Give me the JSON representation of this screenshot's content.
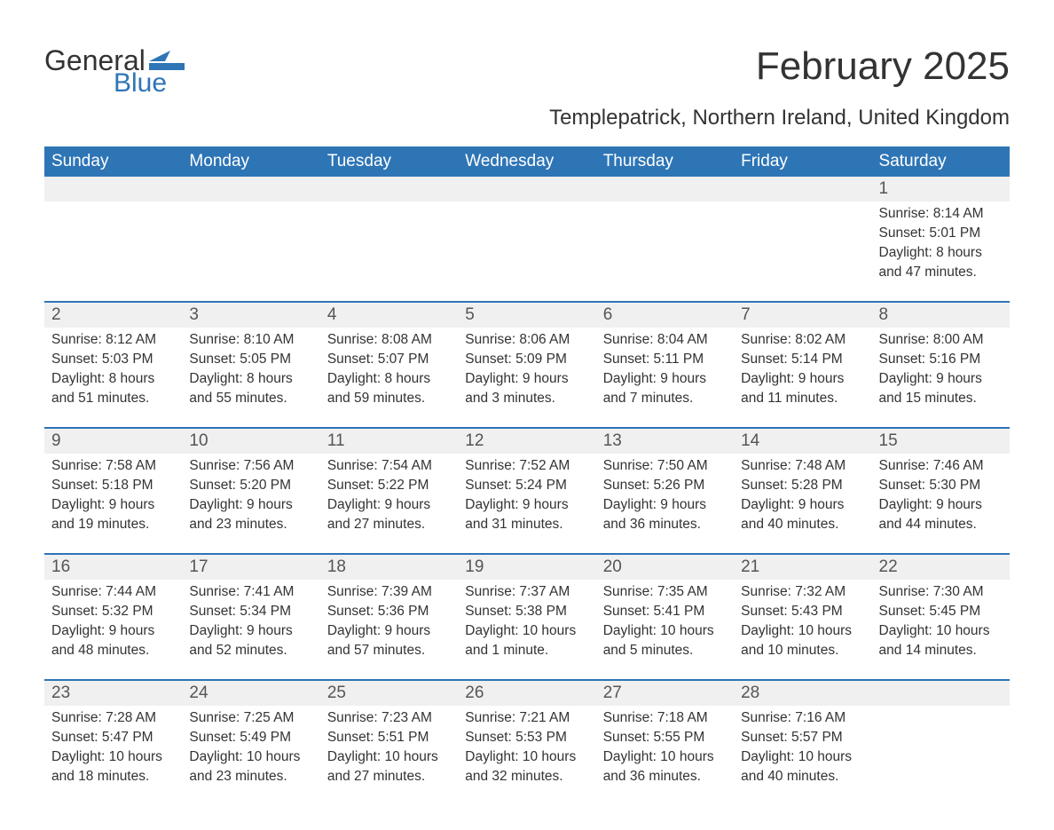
{
  "logo": {
    "word1": "General",
    "word2": "Blue",
    "icon_color": "#2e75b6"
  },
  "title": "February 2025",
  "subtitle": "Templepatrick, Northern Ireland, United Kingdom",
  "colors": {
    "header_bg": "#2e75b6",
    "header_text": "#ffffff",
    "daynum_bg": "#f0f0f0",
    "accent_border": "#2e75b6",
    "body_text": "#333333",
    "background": "#ffffff"
  },
  "font_sizes": {
    "title": 44,
    "subtitle": 24,
    "header": 19,
    "daynum": 19,
    "detail": 15.5
  },
  "day_headers": [
    "Sunday",
    "Monday",
    "Tuesday",
    "Wednesday",
    "Thursday",
    "Friday",
    "Saturday"
  ],
  "weeks": [
    {
      "days": [
        {
          "num": "",
          "sunrise": "",
          "sunset": "",
          "daylight1": "",
          "daylight2": ""
        },
        {
          "num": "",
          "sunrise": "",
          "sunset": "",
          "daylight1": "",
          "daylight2": ""
        },
        {
          "num": "",
          "sunrise": "",
          "sunset": "",
          "daylight1": "",
          "daylight2": ""
        },
        {
          "num": "",
          "sunrise": "",
          "sunset": "",
          "daylight1": "",
          "daylight2": ""
        },
        {
          "num": "",
          "sunrise": "",
          "sunset": "",
          "daylight1": "",
          "daylight2": ""
        },
        {
          "num": "",
          "sunrise": "",
          "sunset": "",
          "daylight1": "",
          "daylight2": ""
        },
        {
          "num": "1",
          "sunrise": "Sunrise: 8:14 AM",
          "sunset": "Sunset: 5:01 PM",
          "daylight1": "Daylight: 8 hours",
          "daylight2": "and 47 minutes."
        }
      ]
    },
    {
      "days": [
        {
          "num": "2",
          "sunrise": "Sunrise: 8:12 AM",
          "sunset": "Sunset: 5:03 PM",
          "daylight1": "Daylight: 8 hours",
          "daylight2": "and 51 minutes."
        },
        {
          "num": "3",
          "sunrise": "Sunrise: 8:10 AM",
          "sunset": "Sunset: 5:05 PM",
          "daylight1": "Daylight: 8 hours",
          "daylight2": "and 55 minutes."
        },
        {
          "num": "4",
          "sunrise": "Sunrise: 8:08 AM",
          "sunset": "Sunset: 5:07 PM",
          "daylight1": "Daylight: 8 hours",
          "daylight2": "and 59 minutes."
        },
        {
          "num": "5",
          "sunrise": "Sunrise: 8:06 AM",
          "sunset": "Sunset: 5:09 PM",
          "daylight1": "Daylight: 9 hours",
          "daylight2": "and 3 minutes."
        },
        {
          "num": "6",
          "sunrise": "Sunrise: 8:04 AM",
          "sunset": "Sunset: 5:11 PM",
          "daylight1": "Daylight: 9 hours",
          "daylight2": "and 7 minutes."
        },
        {
          "num": "7",
          "sunrise": "Sunrise: 8:02 AM",
          "sunset": "Sunset: 5:14 PM",
          "daylight1": "Daylight: 9 hours",
          "daylight2": "and 11 minutes."
        },
        {
          "num": "8",
          "sunrise": "Sunrise: 8:00 AM",
          "sunset": "Sunset: 5:16 PM",
          "daylight1": "Daylight: 9 hours",
          "daylight2": "and 15 minutes."
        }
      ]
    },
    {
      "days": [
        {
          "num": "9",
          "sunrise": "Sunrise: 7:58 AM",
          "sunset": "Sunset: 5:18 PM",
          "daylight1": "Daylight: 9 hours",
          "daylight2": "and 19 minutes."
        },
        {
          "num": "10",
          "sunrise": "Sunrise: 7:56 AM",
          "sunset": "Sunset: 5:20 PM",
          "daylight1": "Daylight: 9 hours",
          "daylight2": "and 23 minutes."
        },
        {
          "num": "11",
          "sunrise": "Sunrise: 7:54 AM",
          "sunset": "Sunset: 5:22 PM",
          "daylight1": "Daylight: 9 hours",
          "daylight2": "and 27 minutes."
        },
        {
          "num": "12",
          "sunrise": "Sunrise: 7:52 AM",
          "sunset": "Sunset: 5:24 PM",
          "daylight1": "Daylight: 9 hours",
          "daylight2": "and 31 minutes."
        },
        {
          "num": "13",
          "sunrise": "Sunrise: 7:50 AM",
          "sunset": "Sunset: 5:26 PM",
          "daylight1": "Daylight: 9 hours",
          "daylight2": "and 36 minutes."
        },
        {
          "num": "14",
          "sunrise": "Sunrise: 7:48 AM",
          "sunset": "Sunset: 5:28 PM",
          "daylight1": "Daylight: 9 hours",
          "daylight2": "and 40 minutes."
        },
        {
          "num": "15",
          "sunrise": "Sunrise: 7:46 AM",
          "sunset": "Sunset: 5:30 PM",
          "daylight1": "Daylight: 9 hours",
          "daylight2": "and 44 minutes."
        }
      ]
    },
    {
      "days": [
        {
          "num": "16",
          "sunrise": "Sunrise: 7:44 AM",
          "sunset": "Sunset: 5:32 PM",
          "daylight1": "Daylight: 9 hours",
          "daylight2": "and 48 minutes."
        },
        {
          "num": "17",
          "sunrise": "Sunrise: 7:41 AM",
          "sunset": "Sunset: 5:34 PM",
          "daylight1": "Daylight: 9 hours",
          "daylight2": "and 52 minutes."
        },
        {
          "num": "18",
          "sunrise": "Sunrise: 7:39 AM",
          "sunset": "Sunset: 5:36 PM",
          "daylight1": "Daylight: 9 hours",
          "daylight2": "and 57 minutes."
        },
        {
          "num": "19",
          "sunrise": "Sunrise: 7:37 AM",
          "sunset": "Sunset: 5:38 PM",
          "daylight1": "Daylight: 10 hours",
          "daylight2": "and 1 minute."
        },
        {
          "num": "20",
          "sunrise": "Sunrise: 7:35 AM",
          "sunset": "Sunset: 5:41 PM",
          "daylight1": "Daylight: 10 hours",
          "daylight2": "and 5 minutes."
        },
        {
          "num": "21",
          "sunrise": "Sunrise: 7:32 AM",
          "sunset": "Sunset: 5:43 PM",
          "daylight1": "Daylight: 10 hours",
          "daylight2": "and 10 minutes."
        },
        {
          "num": "22",
          "sunrise": "Sunrise: 7:30 AM",
          "sunset": "Sunset: 5:45 PM",
          "daylight1": "Daylight: 10 hours",
          "daylight2": "and 14 minutes."
        }
      ]
    },
    {
      "days": [
        {
          "num": "23",
          "sunrise": "Sunrise: 7:28 AM",
          "sunset": "Sunset: 5:47 PM",
          "daylight1": "Daylight: 10 hours",
          "daylight2": "and 18 minutes."
        },
        {
          "num": "24",
          "sunrise": "Sunrise: 7:25 AM",
          "sunset": "Sunset: 5:49 PM",
          "daylight1": "Daylight: 10 hours",
          "daylight2": "and 23 minutes."
        },
        {
          "num": "25",
          "sunrise": "Sunrise: 7:23 AM",
          "sunset": "Sunset: 5:51 PM",
          "daylight1": "Daylight: 10 hours",
          "daylight2": "and 27 minutes."
        },
        {
          "num": "26",
          "sunrise": "Sunrise: 7:21 AM",
          "sunset": "Sunset: 5:53 PM",
          "daylight1": "Daylight: 10 hours",
          "daylight2": "and 32 minutes."
        },
        {
          "num": "27",
          "sunrise": "Sunrise: 7:18 AM",
          "sunset": "Sunset: 5:55 PM",
          "daylight1": "Daylight: 10 hours",
          "daylight2": "and 36 minutes."
        },
        {
          "num": "28",
          "sunrise": "Sunrise: 7:16 AM",
          "sunset": "Sunset: 5:57 PM",
          "daylight1": "Daylight: 10 hours",
          "daylight2": "and 40 minutes."
        },
        {
          "num": "",
          "sunrise": "",
          "sunset": "",
          "daylight1": "",
          "daylight2": ""
        }
      ]
    }
  ]
}
